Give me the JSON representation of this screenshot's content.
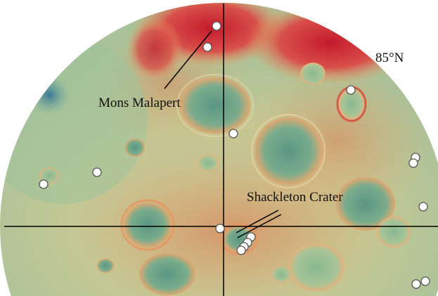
{
  "labels": {
    "latitude": "85°N",
    "mons_malapert": "Mons Malapert",
    "shackleton": "Shackleton Crater"
  },
  "colors": {
    "high_elevation": "#c8202e",
    "mid_elevation": "#e8a060",
    "plain": "#b8c890",
    "low_elevation": "#5e9a84",
    "deep_low": "#2e6e98",
    "marker_fill": "#ffffff",
    "marker_stroke": "#555555",
    "line": "#000000"
  },
  "markers": [
    {
      "name": "site-near-mons-malapert-1"
    },
    {
      "name": "site-near-mons-malapert-2"
    },
    {
      "name": "site-ridge-east"
    },
    {
      "name": "site-central"
    },
    {
      "name": "site-west-1"
    },
    {
      "name": "site-west-2"
    },
    {
      "name": "site-east-edge-1"
    },
    {
      "name": "site-east-edge-2"
    },
    {
      "name": "site-east-edge-3"
    },
    {
      "name": "site-southeast-1"
    },
    {
      "name": "site-southeast-2"
    },
    {
      "name": "site-shackleton-rim"
    },
    {
      "name": "site-shackleton-cluster-1"
    },
    {
      "name": "site-shackleton-cluster-2"
    },
    {
      "name": "site-shackleton-cluster-3"
    },
    {
      "name": "site-shackleton-cluster-4"
    }
  ]
}
